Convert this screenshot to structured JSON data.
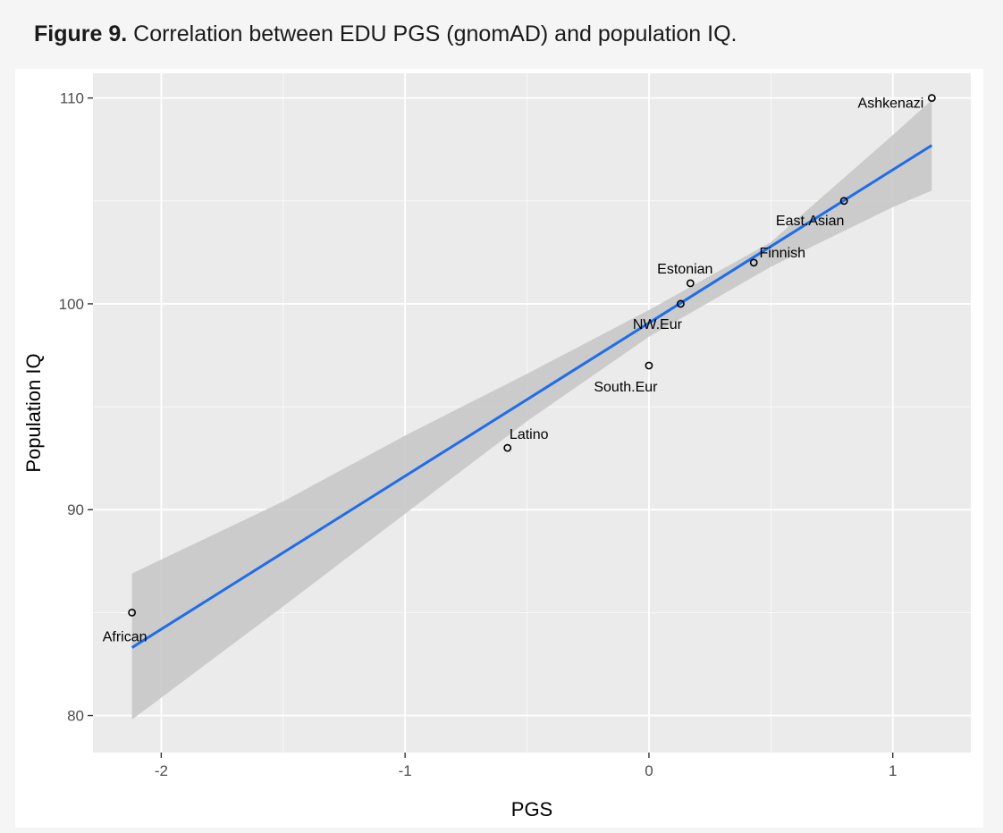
{
  "caption": {
    "label": "Figure 9.",
    "text": "Correlation between EDU PGS (gnomAD) and population IQ."
  },
  "colors": {
    "panel_bg": "#ebebeb",
    "grid_major": "#ffffff",
    "ribbon": "#c8c8c8",
    "line": "#1f6de8",
    "point": "#000000"
  },
  "chart_data": {
    "type": "scatter",
    "title": "",
    "xlabel": "PGS",
    "ylabel": "Population IQ",
    "xlim": [
      -2.28,
      1.32
    ],
    "ylim": [
      78.2,
      111.2
    ],
    "xticks": [
      -2,
      -1,
      0,
      1
    ],
    "xtick_labels": [
      "-2",
      "-1",
      "0",
      "1"
    ],
    "yticks": [
      80,
      90,
      100,
      110
    ],
    "ytick_labels": [
      "80",
      "90",
      "100",
      "110"
    ],
    "grid": true,
    "legend": "none",
    "points": [
      {
        "label": "African",
        "x": -2.12,
        "y": 85
      },
      {
        "label": "Latino",
        "x": -0.58,
        "y": 93
      },
      {
        "label": "South.Eur",
        "x": 0.0,
        "y": 97
      },
      {
        "label": "NW.Eur",
        "x": 0.13,
        "y": 100
      },
      {
        "label": "Estonian",
        "x": 0.17,
        "y": 101
      },
      {
        "label": "Finnish",
        "x": 0.43,
        "y": 102
      },
      {
        "label": "East.Asian",
        "x": 0.8,
        "y": 105
      },
      {
        "label": "Ashkenazi",
        "x": 1.16,
        "y": 110
      }
    ],
    "fit_line": {
      "x": [
        -2.12,
        1.16
      ],
      "y": [
        83.3,
        107.7
      ]
    },
    "ribbon": {
      "x": [
        -2.12,
        -1.5,
        -1.0,
        -0.5,
        0.0,
        0.5,
        1.0,
        1.16
      ],
      "lower": [
        79.8,
        85.3,
        89.8,
        94.3,
        98.4,
        101.8,
        104.7,
        105.5
      ],
      "upper": [
        86.9,
        90.4,
        93.6,
        96.6,
        99.7,
        103.0,
        108.2,
        109.9
      ]
    }
  }
}
